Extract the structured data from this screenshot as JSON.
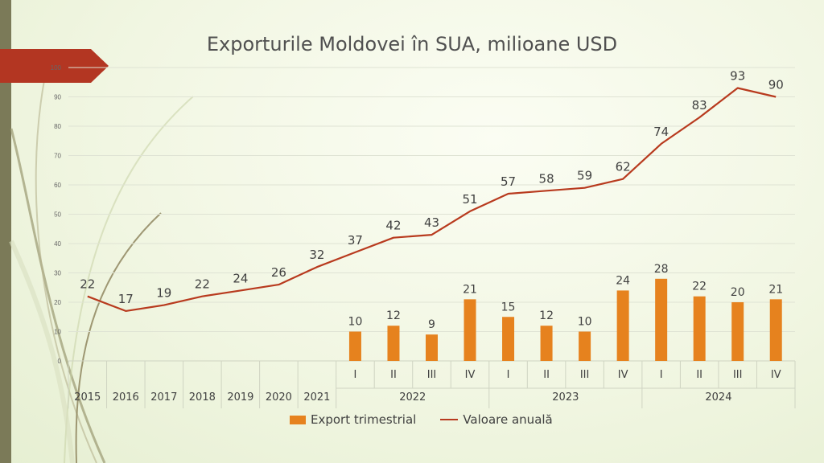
{
  "title": "Exporturile Moldovei în SUA, milioane USD",
  "colors": {
    "bars": "#e6821e",
    "line": "#b83a1e",
    "accent_tab": "#b33622",
    "left_bar": "#7b7a58"
  },
  "legend": {
    "bars_label": "Export trimestrial",
    "line_label": "Valoare anuală"
  },
  "chart_data": {
    "type": "bar+line",
    "categories": [
      {
        "label": "2015",
        "group": ""
      },
      {
        "label": "2016",
        "group": ""
      },
      {
        "label": "2017",
        "group": ""
      },
      {
        "label": "2018",
        "group": ""
      },
      {
        "label": "2019",
        "group": ""
      },
      {
        "label": "2020",
        "group": ""
      },
      {
        "label": "2021",
        "group": ""
      },
      {
        "label": "I",
        "group": "2022"
      },
      {
        "label": "II",
        "group": "2022"
      },
      {
        "label": "III",
        "group": "2022"
      },
      {
        "label": "IV",
        "group": "2022"
      },
      {
        "label": "I",
        "group": "2023"
      },
      {
        "label": "II",
        "group": "2023"
      },
      {
        "label": "III",
        "group": "2023"
      },
      {
        "label": "IV",
        "group": "2023"
      },
      {
        "label": "I",
        "group": "2024"
      },
      {
        "label": "II",
        "group": "2024"
      },
      {
        "label": "III",
        "group": "2024"
      },
      {
        "label": "IV",
        "group": "2024"
      }
    ],
    "groups": [
      "2022",
      "2023",
      "2024"
    ],
    "yticks": [
      0,
      10,
      20,
      30,
      40,
      50,
      60,
      70,
      80,
      90,
      100
    ],
    "ylim": [
      0,
      100
    ],
    "series": [
      {
        "name": "Export trimestrial",
        "kind": "bar",
        "values": [
          null,
          null,
          null,
          null,
          null,
          null,
          null,
          10,
          12,
          9,
          21,
          15,
          12,
          10,
          24,
          28,
          22,
          20,
          21
        ]
      },
      {
        "name": "Valoare anuală",
        "kind": "line",
        "values": [
          22,
          17,
          19,
          22,
          24,
          26,
          32,
          37,
          42,
          43,
          51,
          57,
          58,
          59,
          62,
          74,
          83,
          93,
          90
        ]
      }
    ],
    "grid": true,
    "legend_position": "bottom"
  }
}
